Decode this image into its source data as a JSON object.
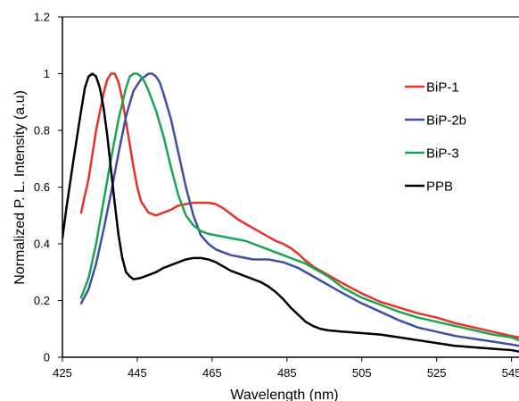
{
  "chart_data": {
    "type": "line",
    "title": "",
    "xlabel": "Wavelength (nm)",
    "ylabel": "Normalized P. L. Intensity (a.u)",
    "xlim": [
      425,
      547
    ],
    "ylim": [
      0,
      1.2
    ],
    "xticks": [
      425,
      445,
      465,
      485,
      505,
      525,
      545
    ],
    "xtick_labels": [
      "425",
      "445",
      "465",
      "485",
      "505",
      "525",
      "545"
    ],
    "yticks": [
      0,
      0.2,
      0.4,
      0.6,
      0.8,
      1,
      1.2
    ],
    "ytick_labels": [
      "0",
      "0.2",
      "0.4",
      "0.6",
      "0.8",
      "1",
      "1.2"
    ],
    "grid": false,
    "legend_position": "right",
    "series": [
      {
        "name": "BiP-1",
        "color": "#e8312a",
        "x": [
          430,
          432,
          434,
          436,
          437,
          438,
          439,
          440,
          441,
          442,
          443,
          444,
          445,
          446,
          448,
          450,
          452,
          454,
          456,
          458,
          460,
          462,
          464,
          466,
          468,
          470,
          472,
          474,
          476,
          478,
          480,
          482,
          484,
          486,
          488,
          490,
          492,
          494,
          496,
          498,
          500,
          505,
          510,
          515,
          520,
          525,
          530,
          535,
          540,
          545,
          547
        ],
        "y": [
          0.51,
          0.63,
          0.8,
          0.93,
          0.98,
          1.0,
          1.0,
          0.97,
          0.91,
          0.83,
          0.75,
          0.67,
          0.6,
          0.55,
          0.51,
          0.5,
          0.51,
          0.52,
          0.535,
          0.54,
          0.545,
          0.545,
          0.545,
          0.54,
          0.525,
          0.505,
          0.485,
          0.47,
          0.455,
          0.44,
          0.425,
          0.41,
          0.4,
          0.385,
          0.365,
          0.34,
          0.32,
          0.305,
          0.29,
          0.275,
          0.26,
          0.225,
          0.195,
          0.175,
          0.155,
          0.14,
          0.12,
          0.105,
          0.09,
          0.075,
          0.07
        ]
      },
      {
        "name": "BiP-2b",
        "color": "#3d4fa8",
        "x": [
          430,
          432,
          434,
          436,
          438,
          440,
          442,
          444,
          446,
          448,
          449,
          450,
          451,
          452,
          454,
          456,
          458,
          460,
          462,
          464,
          466,
          468,
          470,
          472,
          474,
          476,
          478,
          480,
          482,
          484,
          486,
          488,
          490,
          492,
          494,
          496,
          498,
          500,
          505,
          510,
          515,
          520,
          525,
          530,
          535,
          540,
          545,
          547
        ],
        "y": [
          0.19,
          0.24,
          0.33,
          0.45,
          0.58,
          0.72,
          0.85,
          0.94,
          0.98,
          1.0,
          1.0,
          0.99,
          0.97,
          0.93,
          0.84,
          0.72,
          0.6,
          0.5,
          0.43,
          0.4,
          0.38,
          0.37,
          0.36,
          0.355,
          0.35,
          0.345,
          0.345,
          0.345,
          0.34,
          0.335,
          0.325,
          0.315,
          0.3,
          0.285,
          0.27,
          0.255,
          0.24,
          0.225,
          0.19,
          0.16,
          0.13,
          0.105,
          0.09,
          0.075,
          0.065,
          0.055,
          0.045,
          0.04
        ]
      },
      {
        "name": "BiP-3",
        "color": "#1aa650",
        "x": [
          430,
          432,
          434,
          436,
          438,
          440,
          442,
          443,
          444,
          445,
          446,
          447,
          448,
          450,
          452,
          454,
          456,
          458,
          460,
          462,
          464,
          466,
          468,
          470,
          472,
          474,
          476,
          478,
          480,
          482,
          484,
          486,
          488,
          490,
          492,
          494,
          496,
          498,
          500,
          505,
          510,
          515,
          520,
          525,
          530,
          535,
          540,
          545,
          547
        ],
        "y": [
          0.21,
          0.28,
          0.4,
          0.55,
          0.7,
          0.84,
          0.95,
          0.99,
          1.0,
          1.0,
          0.99,
          0.97,
          0.94,
          0.87,
          0.78,
          0.67,
          0.57,
          0.5,
          0.465,
          0.445,
          0.435,
          0.43,
          0.425,
          0.42,
          0.415,
          0.41,
          0.4,
          0.39,
          0.38,
          0.37,
          0.36,
          0.35,
          0.34,
          0.33,
          0.315,
          0.3,
          0.285,
          0.265,
          0.245,
          0.21,
          0.185,
          0.16,
          0.14,
          0.125,
          0.11,
          0.095,
          0.08,
          0.07,
          0.06
        ]
      },
      {
        "name": "PPB",
        "color": "#000000",
        "x": [
          425,
          426,
          428,
          430,
          431,
          432,
          433,
          434,
          435,
          436,
          437,
          438,
          439,
          440,
          441,
          442,
          443,
          444,
          446,
          448,
          450,
          452,
          454,
          456,
          458,
          460,
          462,
          464,
          466,
          468,
          470,
          472,
          474,
          476,
          478,
          480,
          482,
          484,
          486,
          488,
          490,
          492,
          494,
          496,
          500,
          505,
          510,
          515,
          520,
          525,
          530,
          535,
          540,
          545,
          547
        ],
        "y": [
          0.42,
          0.52,
          0.7,
          0.87,
          0.95,
          0.99,
          1.0,
          0.99,
          0.95,
          0.88,
          0.78,
          0.66,
          0.54,
          0.43,
          0.35,
          0.3,
          0.285,
          0.275,
          0.28,
          0.29,
          0.3,
          0.315,
          0.325,
          0.335,
          0.345,
          0.35,
          0.35,
          0.345,
          0.335,
          0.32,
          0.305,
          0.295,
          0.285,
          0.275,
          0.265,
          0.25,
          0.23,
          0.205,
          0.175,
          0.15,
          0.125,
          0.11,
          0.1,
          0.095,
          0.09,
          0.085,
          0.08,
          0.07,
          0.06,
          0.05,
          0.04,
          0.035,
          0.03,
          0.025,
          0.02
        ]
      }
    ]
  }
}
